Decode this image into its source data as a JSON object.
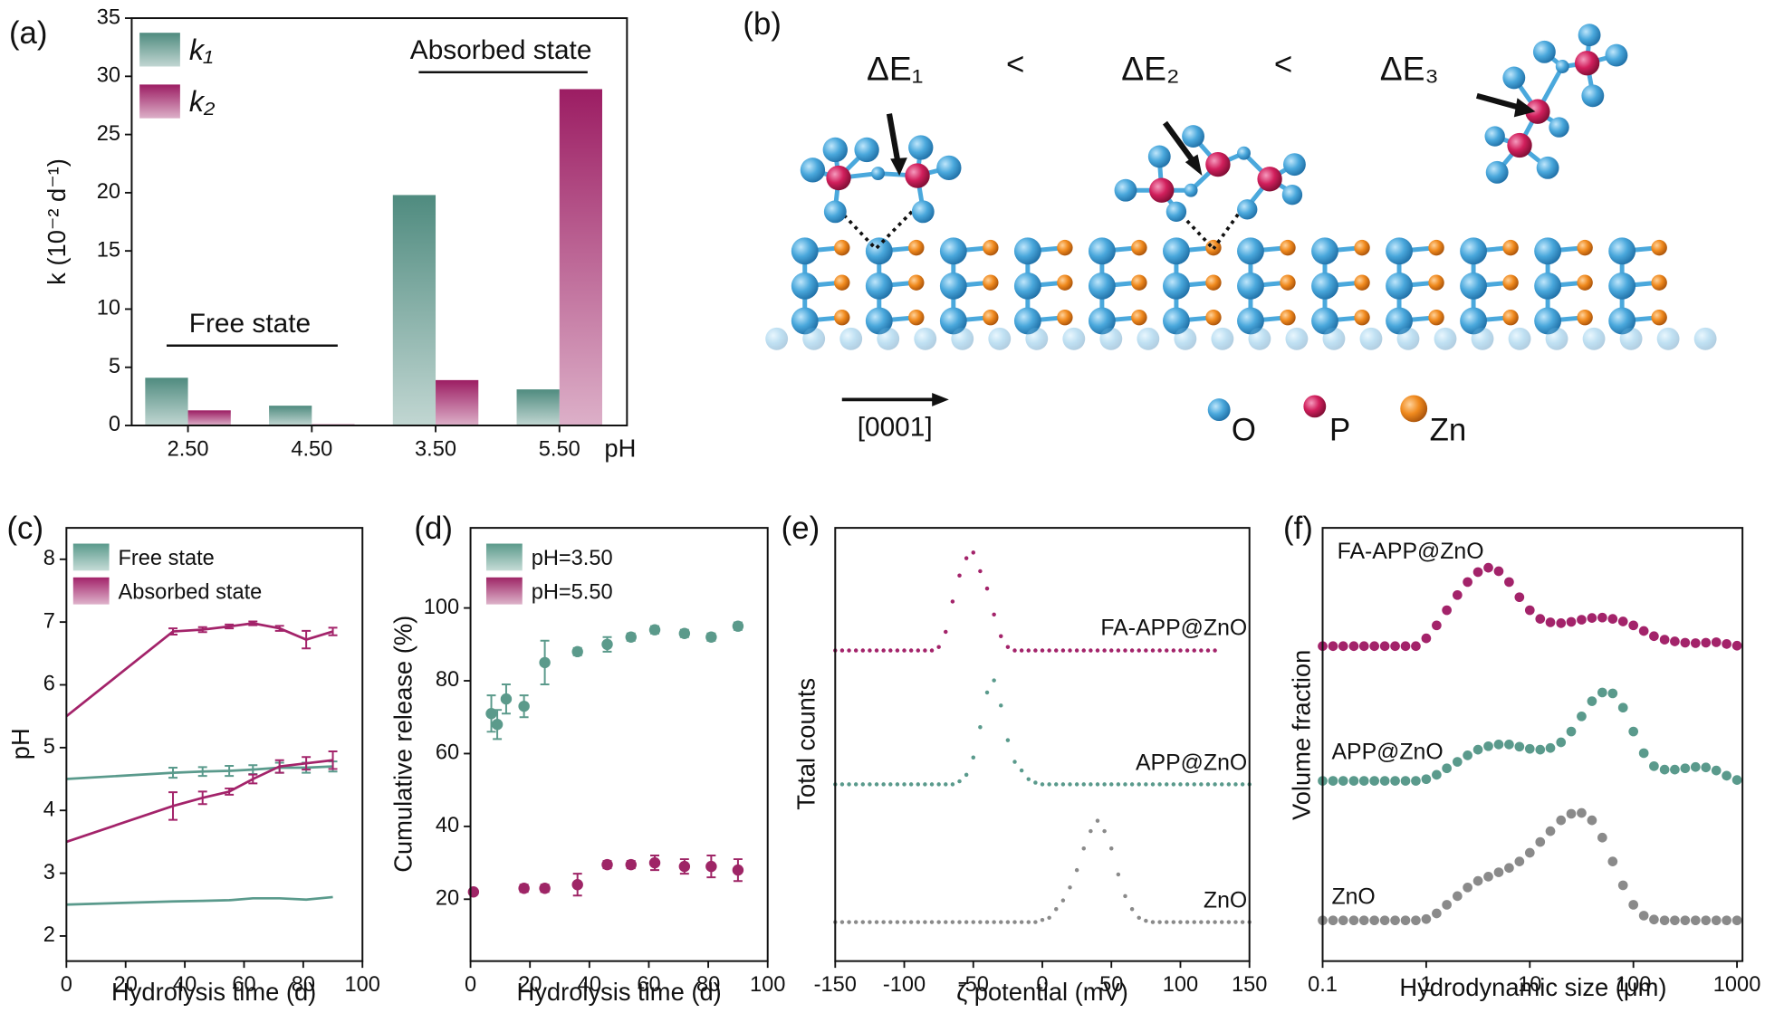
{
  "chart_data": [
    {
      "type": "bar",
      "label": "(a)",
      "ylabel": "k (10⁻² d⁻¹)",
      "xlabel": "pH",
      "categories": [
        "2.50",
        "4.50",
        "3.50",
        "5.50"
      ],
      "series": [
        {
          "name": "k₁",
          "color": "#4f8b7f",
          "values": [
            4.1,
            1.7,
            19.8,
            3.1
          ]
        },
        {
          "name": "k₂",
          "color": "#9c1d63",
          "values": [
            1.3,
            0.1,
            3.9,
            28.9
          ]
        }
      ],
      "ylim": [
        0,
        35
      ],
      "yticks": [
        0,
        5,
        10,
        15,
        20,
        25,
        30,
        35
      ],
      "legend": "upper left",
      "annotations": [
        "Free state",
        "Absorbed state"
      ]
    },
    {
      "type": "line",
      "label": "(c)",
      "xlabel": "Hydrolysis time (d)",
      "ylabel": "pH",
      "x": [
        0,
        36,
        46,
        55,
        63,
        72,
        81,
        90
      ],
      "xlim": [
        0,
        100
      ],
      "xticks": [
        0,
        20,
        40,
        60,
        80,
        100
      ],
      "ylim": [
        1.6,
        8.5
      ],
      "yticks": [
        2,
        3,
        4,
        5,
        6,
        7,
        8
      ],
      "legend": "upper left",
      "series": [
        {
          "name": "Free state",
          "color": "#5a9a8c",
          "curves": [
            {
              "values": [
                2.5,
                2.55,
                2.56,
                2.57,
                2.6,
                2.6,
                2.58,
                2.62
              ]
            },
            {
              "values": [
                4.5,
                4.6,
                4.62,
                4.63,
                4.65,
                4.68,
                4.68,
                4.7
              ],
              "errors": [
                null,
                0.08,
                0.07,
                0.08,
                0.07,
                0.08,
                0.08,
                0.08
              ]
            }
          ]
        },
        {
          "name": "Absorbed state",
          "color": "#a3236a",
          "curves": [
            {
              "values": [
                3.5,
                4.07,
                4.2,
                4.3,
                4.5,
                4.7,
                4.75,
                4.8
              ],
              "errors": [
                null,
                0.22,
                0.1,
                0.05,
                0.07,
                0.1,
                0.1,
                0.14
              ]
            },
            {
              "values": [
                5.5,
                6.85,
                6.88,
                6.93,
                6.98,
                6.9,
                6.72,
                6.85
              ],
              "errors": [
                null,
                0.05,
                0.04,
                0.03,
                0.03,
                0.04,
                0.14,
                0.06
              ]
            }
          ]
        }
      ]
    },
    {
      "type": "scatter",
      "label": "(d)",
      "xlabel": "Hydrolysis time (d)",
      "ylabel": "Cumulative release (%)",
      "xlim": [
        0,
        100
      ],
      "xticks": [
        0,
        20,
        40,
        60,
        80,
        100
      ],
      "ylim": [
        3,
        122
      ],
      "yticks": [
        20,
        40,
        60,
        80,
        100
      ],
      "legend": "upper left",
      "series": [
        {
          "name": "pH=3.50",
          "color": "#5b9a8b",
          "x": [
            7,
            9,
            12,
            18,
            25,
            36,
            46,
            54,
            62,
            72,
            81,
            90
          ],
          "values": [
            71,
            68,
            75,
            73,
            85,
            88,
            90,
            92,
            94,
            93,
            92,
            95
          ],
          "errors": [
            5,
            4,
            4,
            3,
            6,
            1,
            2,
            1,
            1,
            1,
            1,
            1
          ]
        },
        {
          "name": "pH=5.50",
          "color": "#9e2566",
          "x": [
            1,
            18,
            25,
            36,
            46,
            54,
            62,
            72,
            81,
            90
          ],
          "values": [
            22,
            23,
            23,
            24,
            29.5,
            29.5,
            30,
            29,
            29,
            28
          ],
          "errors": [
            null,
            1,
            1,
            3,
            1,
            1,
            2,
            2,
            3,
            3
          ]
        }
      ]
    },
    {
      "type": "scatter",
      "label": "(e)",
      "xlabel": "ζ potential (mV)",
      "ylabel": "Total counts",
      "xlim": [
        -150,
        150
      ],
      "xticks": [
        -150,
        -100,
        -50,
        0,
        50,
        100,
        150
      ],
      "ylim": [
        0,
        10
      ],
      "x": [
        -150,
        -145,
        -140,
        -135,
        -130,
        -125,
        -120,
        -115,
        -110,
        -105,
        -100,
        -95,
        -90,
        -85,
        -80,
        -75,
        -70,
        -65,
        -60,
        -55,
        -50,
        -45,
        -40,
        -35,
        -30,
        -25,
        -20,
        -15,
        -10,
        -5,
        0,
        5,
        10,
        15,
        20,
        25,
        30,
        35,
        40,
        45,
        50,
        55,
        60,
        65,
        70,
        75,
        80,
        85,
        90,
        95,
        100,
        105,
        110,
        115,
        120,
        125,
        130,
        135,
        140,
        145,
        150
      ],
      "series": [
        {
          "name": "FA-APP@ZnO",
          "color": "#a3236a",
          "values": [
            7.17,
            7.17,
            7.17,
            7.17,
            7.17,
            7.17,
            7.17,
            7.17,
            7.17,
            7.17,
            7.17,
            7.17,
            7.17,
            7.17,
            7.17,
            7.25,
            7.6,
            8.3,
            8.9,
            9.3,
            9.43,
            9.0,
            8.6,
            8.0,
            7.5,
            7.25,
            7.17,
            7.17,
            7.17,
            7.17,
            7.17,
            7.17,
            7.17,
            7.17,
            7.17,
            7.17,
            7.17,
            7.17,
            7.17,
            7.17,
            7.17,
            7.17,
            7.17,
            7.17,
            7.17,
            7.17,
            7.17,
            7.17,
            7.17,
            7.17,
            7.17,
            7.17,
            7.17,
            7.17,
            7.17,
            7.17,
            null,
            null,
            null,
            null,
            null
          ]
        },
        {
          "name": "APP@ZnO",
          "color": "#5a9a8c",
          "values": [
            4.08,
            4.08,
            4.08,
            4.08,
            4.08,
            4.08,
            4.08,
            4.08,
            4.08,
            4.08,
            4.08,
            4.08,
            4.08,
            4.08,
            4.08,
            4.08,
            4.08,
            4.08,
            4.15,
            4.3,
            4.7,
            5.4,
            6.2,
            6.48,
            5.9,
            5.1,
            4.6,
            4.4,
            4.2,
            4.12,
            4.08,
            4.08,
            4.08,
            4.08,
            4.08,
            4.08,
            4.08,
            4.08,
            4.08,
            4.08,
            4.08,
            4.08,
            4.08,
            4.08,
            4.08,
            4.08,
            4.08,
            4.08,
            4.08,
            4.08,
            4.08,
            4.08,
            4.08,
            4.08,
            4.08,
            4.08,
            4.08,
            4.08,
            4.08,
            4.08,
            4.08
          ]
        },
        {
          "name": "ZnO",
          "color": "#8a8a8a",
          "values": [
            0.9,
            0.9,
            0.9,
            0.9,
            0.9,
            0.9,
            0.9,
            0.9,
            0.9,
            0.9,
            0.9,
            0.9,
            0.9,
            0.9,
            0.9,
            0.9,
            0.9,
            0.9,
            0.9,
            0.9,
            0.9,
            0.9,
            0.9,
            0.9,
            0.9,
            0.9,
            0.9,
            0.9,
            0.9,
            0.9,
            0.95,
            1.0,
            1.2,
            1.4,
            1.7,
            2.1,
            2.6,
            3.0,
            3.24,
            3.0,
            2.6,
            2.0,
            1.5,
            1.2,
            1.0,
            0.93,
            0.9,
            0.9,
            0.9,
            0.9,
            0.9,
            0.9,
            0.9,
            0.9,
            0.9,
            0.9,
            0.9,
            0.9,
            0.9,
            0.9,
            0.9
          ]
        }
      ]
    },
    {
      "type": "scatter",
      "label": "(f)",
      "xlabel": "Hydrodynamic size (μm)",
      "ylabel": "Volume fraction",
      "xscale": "log",
      "xlim": [
        0.1,
        1130
      ],
      "xticks": [
        0.1,
        1,
        10,
        100,
        1000
      ],
      "ylim": [
        0,
        10
      ],
      "x": [
        0.1,
        0.126,
        0.158,
        0.2,
        0.251,
        0.316,
        0.398,
        0.501,
        0.631,
        0.794,
        1,
        1.26,
        1.58,
        2,
        2.51,
        3.16,
        3.98,
        5.01,
        6.31,
        7.94,
        10,
        12.6,
        15.8,
        20,
        25.1,
        31.6,
        39.8,
        50.1,
        63.1,
        79.4,
        100,
        126,
        158,
        200,
        251,
        316,
        398,
        501,
        631,
        794,
        1000
      ],
      "series": [
        {
          "name": "FA-APP@ZnO",
          "color": "#a3236a",
          "values": [
            7.27,
            7.27,
            7.27,
            7.27,
            7.27,
            7.27,
            7.27,
            7.27,
            7.27,
            7.27,
            7.45,
            7.75,
            8.1,
            8.45,
            8.75,
            8.98,
            9.08,
            9.0,
            8.75,
            8.4,
            8.1,
            7.9,
            7.82,
            7.8,
            7.83,
            7.88,
            7.92,
            7.93,
            7.9,
            7.84,
            7.75,
            7.62,
            7.5,
            7.42,
            7.38,
            7.35,
            7.34,
            7.35,
            7.36,
            7.32,
            7.28
          ]
        },
        {
          "name": "APP@ZnO",
          "color": "#5a9a8c",
          "values": [
            4.16,
            4.16,
            4.16,
            4.16,
            4.16,
            4.16,
            4.16,
            4.16,
            4.16,
            4.16,
            4.2,
            4.3,
            4.45,
            4.6,
            4.75,
            4.88,
            4.96,
            5.0,
            5.0,
            4.95,
            4.9,
            4.88,
            4.92,
            5.05,
            5.3,
            5.65,
            6.0,
            6.2,
            6.18,
            5.85,
            5.3,
            4.8,
            4.5,
            4.42,
            4.42,
            4.45,
            4.48,
            4.47,
            4.4,
            4.28,
            4.18
          ]
        },
        {
          "name": "ZnO",
          "color": "#8a8a8a",
          "values": [
            0.94,
            0.94,
            0.94,
            0.94,
            0.94,
            0.94,
            0.94,
            0.94,
            0.94,
            0.94,
            0.97,
            1.1,
            1.3,
            1.5,
            1.7,
            1.85,
            1.95,
            2.05,
            2.15,
            2.3,
            2.5,
            2.75,
            3.0,
            3.25,
            3.4,
            3.42,
            3.25,
            2.85,
            2.3,
            1.75,
            1.3,
            1.05,
            0.96,
            0.94,
            0.94,
            0.94,
            0.94,
            0.94,
            0.94,
            0.94,
            0.94
          ]
        }
      ]
    }
  ],
  "diagram_b": {
    "label": "(b)",
    "energies": [
      "ΔE₁",
      "ΔE₂",
      "ΔE₃"
    ],
    "relations": [
      "<",
      "<"
    ],
    "direction": "[0001]",
    "atoms": [
      "O",
      "P",
      "Zn"
    ]
  }
}
